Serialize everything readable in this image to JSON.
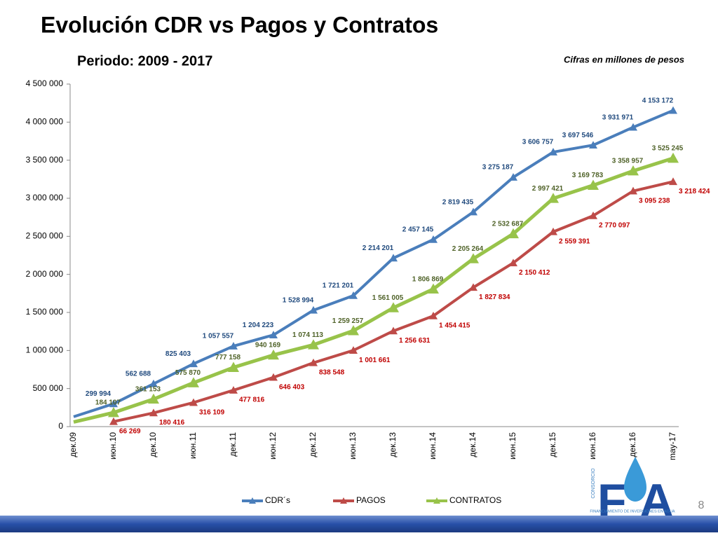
{
  "header": {
    "title": "Evolución CDR vs Pagos y Contratos",
    "subtitle": "Periodo: 2009 - 2017",
    "note": "Cifras en millones de pesos",
    "page_number": "8"
  },
  "logo": {
    "vertical": "CONSORCIO",
    "letter_left": "F",
    "letter_right": "A",
    "tagline": "FINANCIAMIENTO DE INVERSIONES EN AGUA"
  },
  "chart_data": {
    "type": "line",
    "categories": [
      "дек.09",
      "июн.10",
      "дек.10",
      "июн.11",
      "дек.11",
      "июн.12",
      "дек.12",
      "июн.13",
      "дек.13",
      "июн.14",
      "дек.14",
      "июн.15",
      "дек.15",
      "июн.16",
      "дек.16",
      "may-17"
    ],
    "series": [
      {
        "name": "CDR´s",
        "color": "#4a7ebb",
        "label_color": "#1f497d",
        "values": [
          130000,
          299994,
          562688,
          825403,
          1057557,
          1204223,
          1528994,
          1721201,
          2214201,
          2457145,
          2819435,
          3275187,
          3606757,
          3697546,
          3931971,
          4153172
        ],
        "value_labels": [
          null,
          "299 994",
          "562 688",
          "825 403",
          "1 057 557",
          "1 204 223",
          "1 528 994",
          "1 721 201",
          "2 214 201",
          "2 457 145",
          "2 819 435",
          "3 275 187",
          "3 606 757",
          "3 697 546",
          "3 931 971",
          "4 153 172"
        ]
      },
      {
        "name": "PAGOS",
        "color": "#be4b48",
        "label_color": "#c00000",
        "values": [
          null,
          66269,
          180416,
          316109,
          477816,
          646403,
          838548,
          1001661,
          1256631,
          1454415,
          1827834,
          2150412,
          2559391,
          2770097,
          3095238,
          3218424
        ],
        "value_labels": [
          null,
          "66 269",
          "180 416",
          "316 109",
          "477 816",
          "646 403",
          "838 548",
          "1 001 661",
          "1 256 631",
          "1 454 415",
          "1 827 834",
          "2 150 412",
          "2 559 391",
          "2 770 097",
          "3 095 238",
          "3 218 424"
        ]
      },
      {
        "name": "CONTRATOS",
        "color": "#98c34a",
        "label_color": "#4f6228",
        "values": [
          60000,
          184107,
          361153,
          575870,
          777158,
          940169,
          1074113,
          1259257,
          1561005,
          1806869,
          2205264,
          2532687,
          2997421,
          3169783,
          3358957,
          3525245
        ],
        "value_labels": [
          null,
          "184 107",
          "361 153",
          "575 870",
          "777 158",
          "940 169",
          "1 074 113",
          "1 259 257",
          "1 561 005",
          "1 806 869",
          "2 205 264",
          "2 532 687",
          "2 997 421",
          "3 169 783",
          "3 358 957",
          "3 525 245"
        ]
      }
    ],
    "ylim": [
      0,
      4500000
    ],
    "yticks": [
      0,
      {
        "value": 500000,
        "label": "500 000"
      },
      {
        "value": 1000000,
        "label": "1 000 000"
      },
      {
        "value": 1500000,
        "label": "1 500 000"
      },
      {
        "value": 2000000,
        "label": "2 000 000"
      },
      {
        "value": 2500000,
        "label": "2 500 000"
      },
      {
        "value": 3000000,
        "label": "3 000 000"
      },
      {
        "value": 3500000,
        "label": "3 500 000"
      },
      {
        "value": 4000000,
        "label": "4 000 000"
      },
      {
        "value": 4500000,
        "label": "4 500 000"
      }
    ],
    "grid": false,
    "legend": "bottom"
  }
}
